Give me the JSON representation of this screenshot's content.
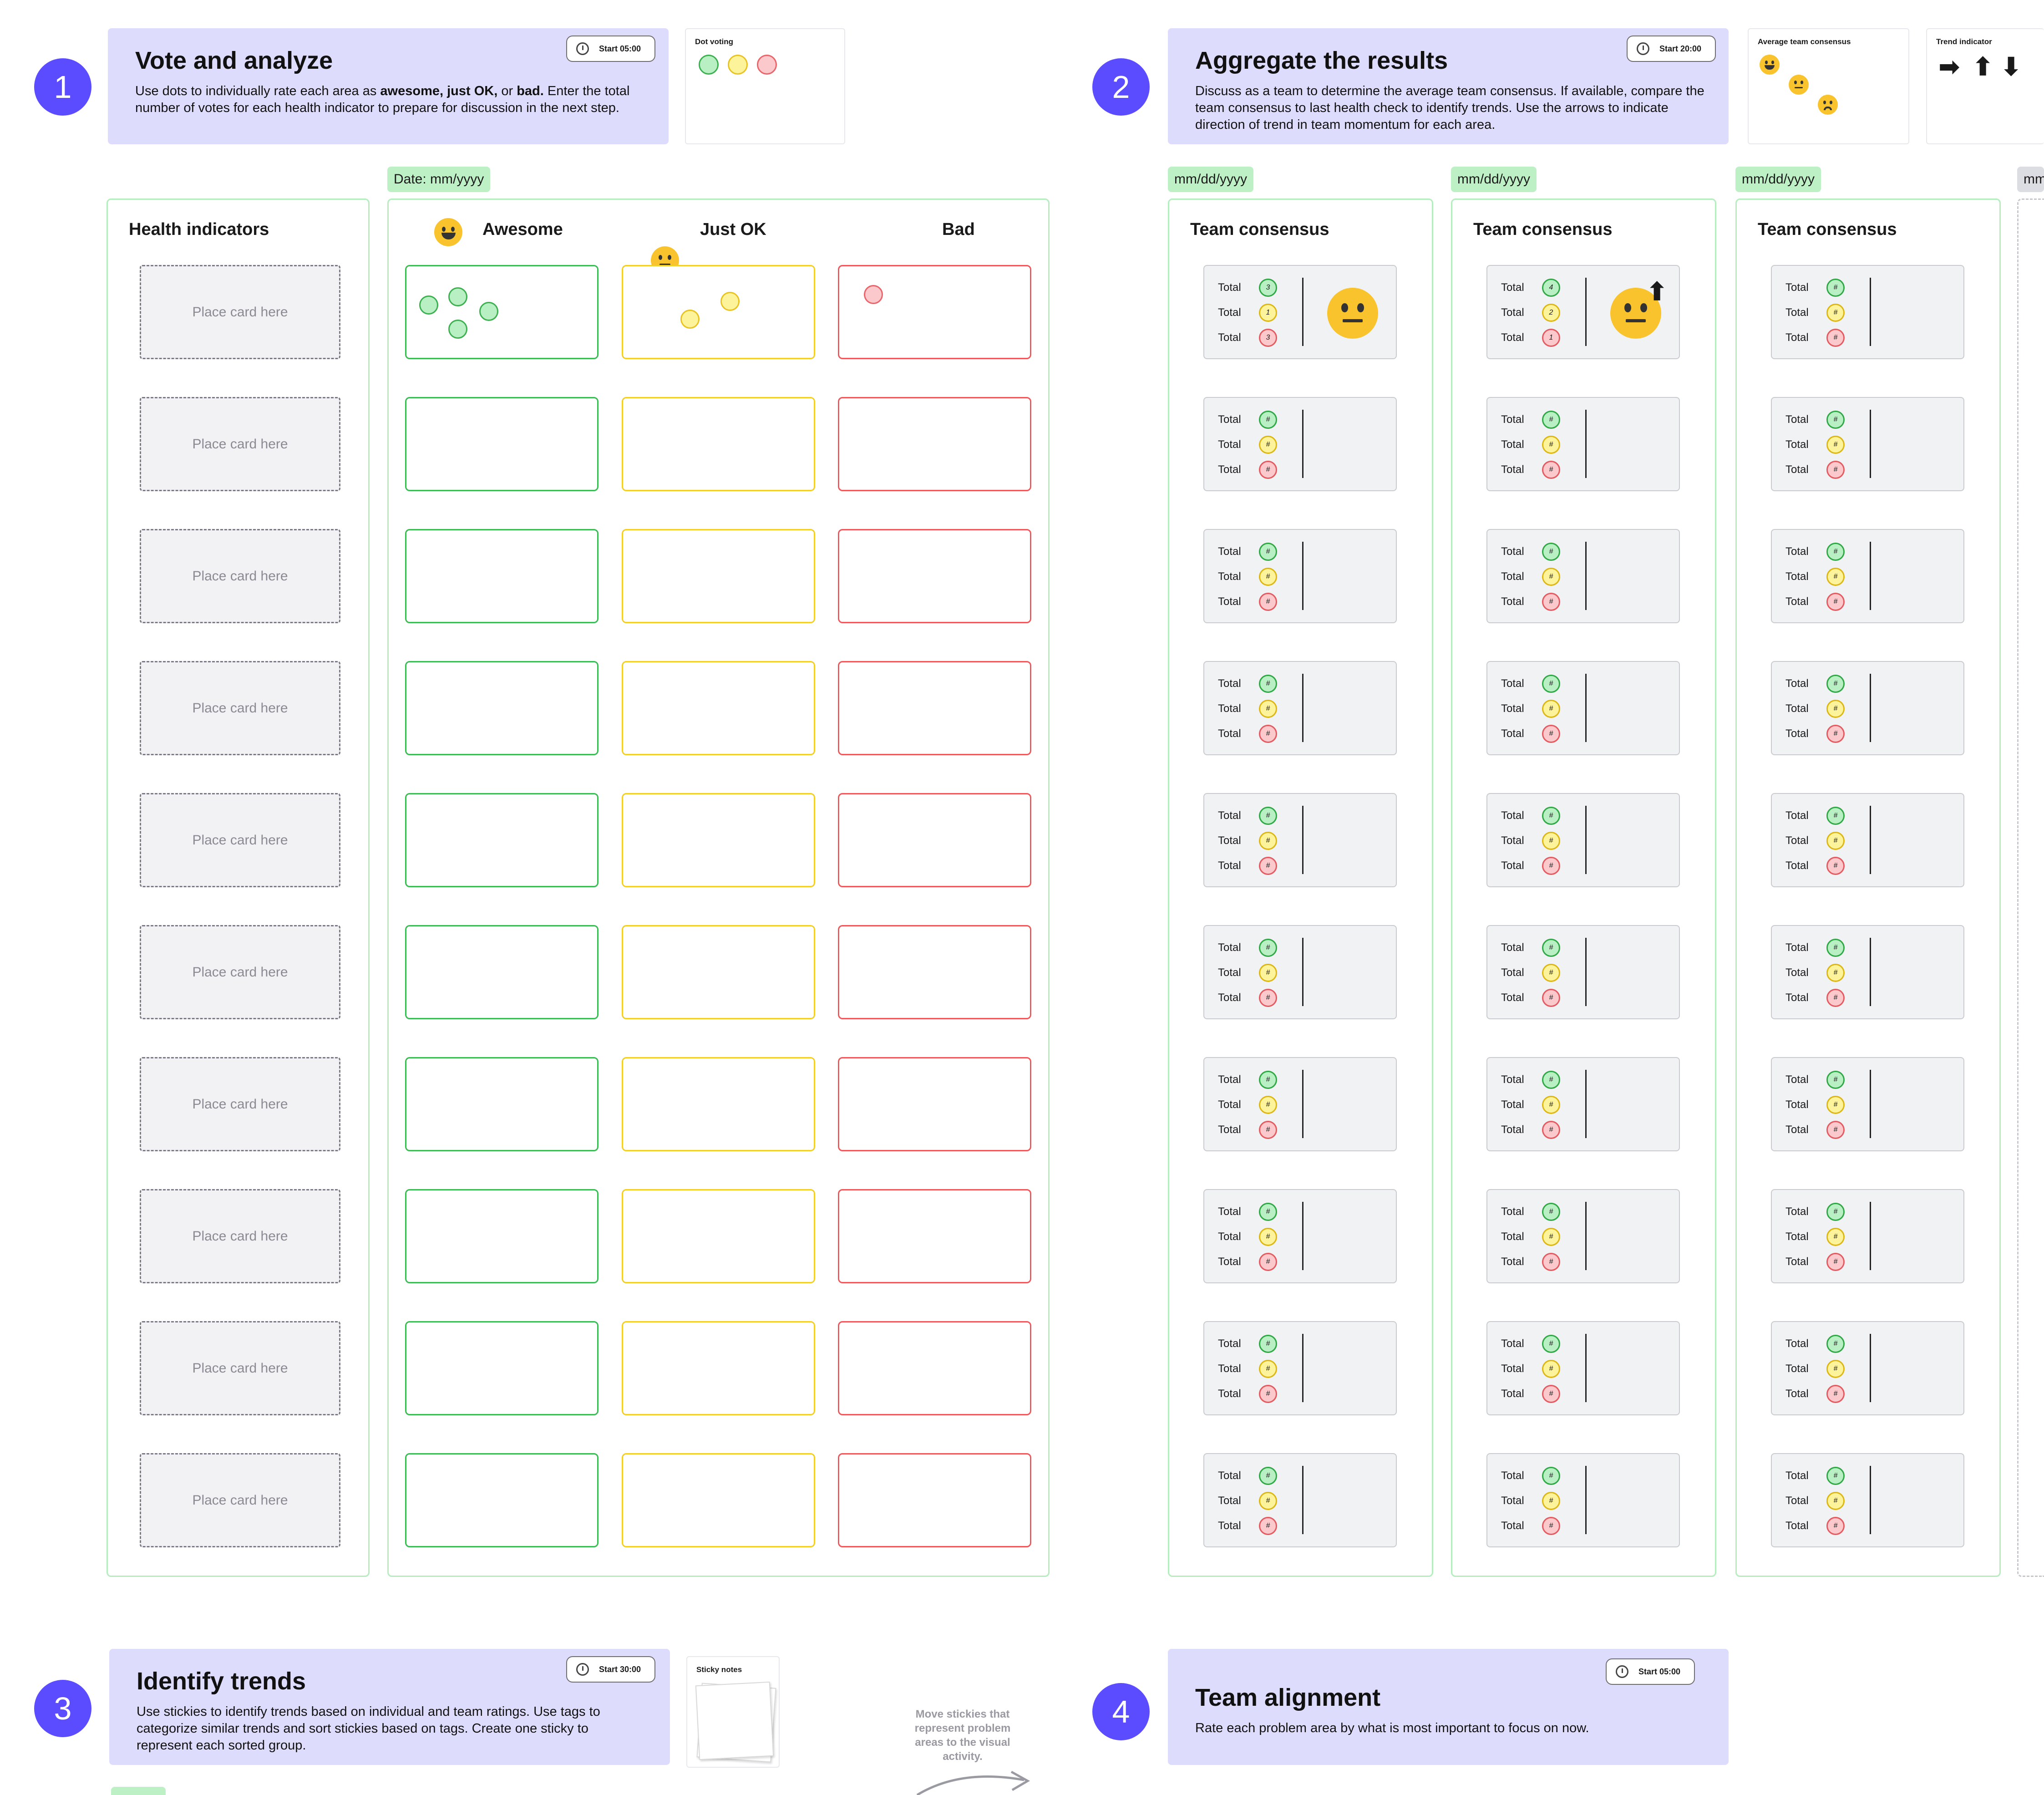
{
  "step1": {
    "number": "1",
    "title": "Vote and analyze",
    "desc_pre": "Use dots to individually rate each area as ",
    "desc_bold1": "awesome, just OK,",
    "desc_mid": " or ",
    "desc_bold2": "bad.",
    "desc_post": " Enter the total number of votes for each health indicator to prepare for discussion in the next step.",
    "timer": "Start 05:00"
  },
  "dot_voting": {
    "title": "Dot voting"
  },
  "date_tag": "Date: mm/yyyy",
  "health": {
    "title": "Health indicators",
    "placeholders": [
      "Place card here",
      "Place card here",
      "Place card here",
      "Place card here",
      "Place card here",
      "Place card here",
      "Place card here",
      "Place card here",
      "Place card here",
      "Place card here"
    ]
  },
  "ratings": {
    "awesome": "Awesome",
    "just_ok": "Just OK",
    "bad": "Bad"
  },
  "step2": {
    "number": "2",
    "title": "Aggregate the results",
    "desc": "Discuss as a team to determine the average team consensus. If available, compare the team consensus to last health check to identify trends. Use the arrows to indicate direction of trend in team momentum for each area.",
    "timer": "Start 20:00"
  },
  "avg_consensus": {
    "title": "Average team consensus"
  },
  "trend": {
    "title": "Trend indicator",
    "arrows": [
      "➡",
      "⬆",
      "⬇"
    ]
  },
  "consensus_cols": [
    {
      "date": "mm/dd/yyyy",
      "title": "Team consensus",
      "first": {
        "g": "3",
        "y": "1",
        "r": "3"
      }
    },
    {
      "date": "mm/dd/yyyy",
      "title": "Team consensus",
      "first": {
        "g": "4",
        "y": "2",
        "r": "1"
      }
    },
    {
      "date": "mm/dd/yyyy",
      "title": "Team consensus",
      "first": {
        "g": "#",
        "y": "#",
        "r": "#"
      }
    }
  ],
  "partial_tag": "mm/",
  "total_label": "Total",
  "hash": "#",
  "step3": {
    "number": "3",
    "title": "Identify trends",
    "desc": "Use stickies to identify trends based on individual and team ratings. Use tags to categorize similar trends and sort stickies based on tags. Create one sticky to represent each sorted group.",
    "timer": "Start 30:00"
  },
  "sticky_notes": {
    "title": "Sticky notes"
  },
  "move_note": "Move stickies that represent problem areas to the visual activity.",
  "step4": {
    "number": "4",
    "title": "Team alignment",
    "desc": "Rate each problem area by what is most important to focus on now.",
    "timer": "Start 05:00"
  },
  "colors": {
    "accent": "#5b4dff",
    "banner": "#dedcfd",
    "green": "#3dbb55",
    "yellow": "#f2cf2a",
    "red": "#ec5a5e"
  }
}
